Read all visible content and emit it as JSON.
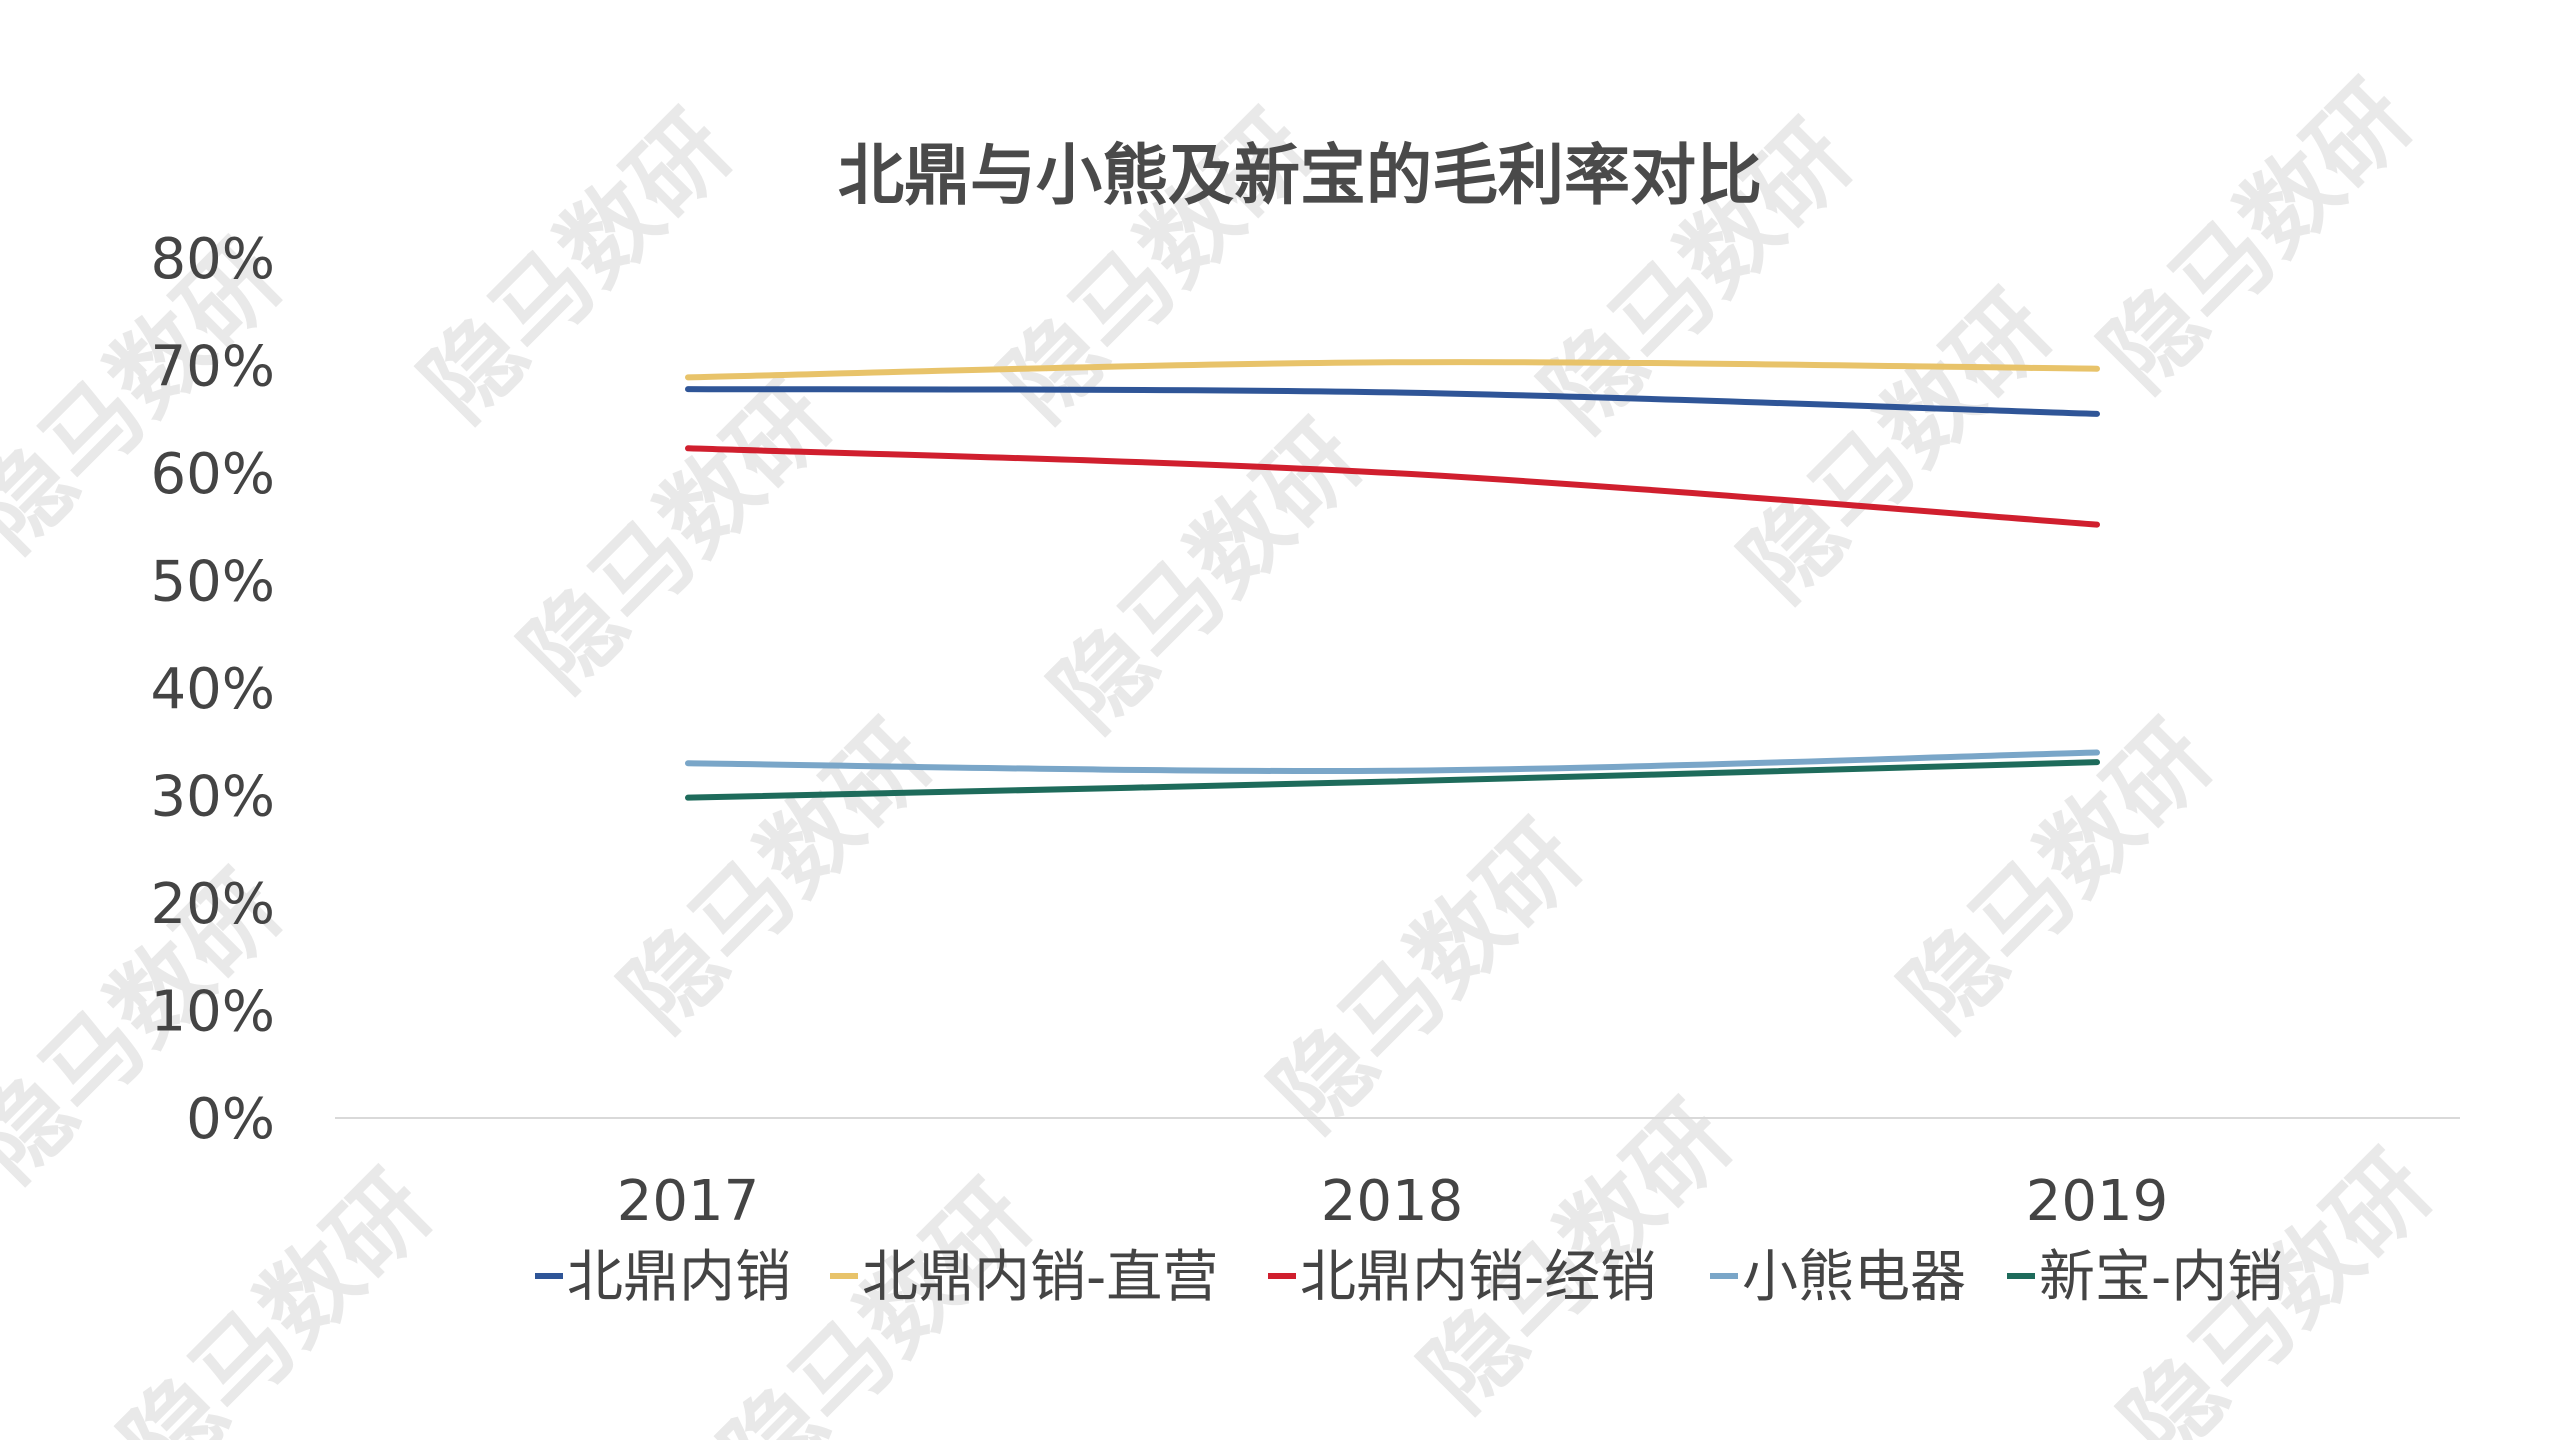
{
  "watermark": "隐马数研",
  "colors": {
    "background": "#ffffff",
    "baseline": "#d9d9d9",
    "text": "#444444"
  },
  "chart_data": {
    "type": "line",
    "title": "北鼎与小熊及新宝的毛利率对比",
    "x": [
      "2017",
      "2018",
      "2019"
    ],
    "ylim": [
      0,
      0.8
    ],
    "yticks": [
      0,
      0.1,
      0.2,
      0.3,
      0.4,
      0.5,
      0.6,
      0.7,
      0.8
    ],
    "ytick_labels": [
      "0%",
      "10%",
      "20%",
      "30%",
      "40%",
      "50%",
      "60%",
      "70%",
      "80%"
    ],
    "grid": false,
    "legend_position": "bottom",
    "series": [
      {
        "name": "北鼎内销",
        "color": "#2f5597",
        "values": [
          0.678,
          0.675,
          0.655
        ]
      },
      {
        "name": "北鼎内销-直营",
        "color": "#e8c36a",
        "values": [
          0.689,
          0.703,
          0.697
        ]
      },
      {
        "name": "北鼎内销-经销",
        "color": "#d01f2e",
        "values": [
          0.623,
          0.6,
          0.552
        ]
      },
      {
        "name": "小熊电器",
        "color": "#7aa6c8",
        "values": [
          0.33,
          0.323,
          0.34
        ]
      },
      {
        "name": "新宝-内销",
        "color": "#1e6b5b",
        "values": [
          0.298,
          0.313,
          0.331
        ]
      }
    ]
  }
}
